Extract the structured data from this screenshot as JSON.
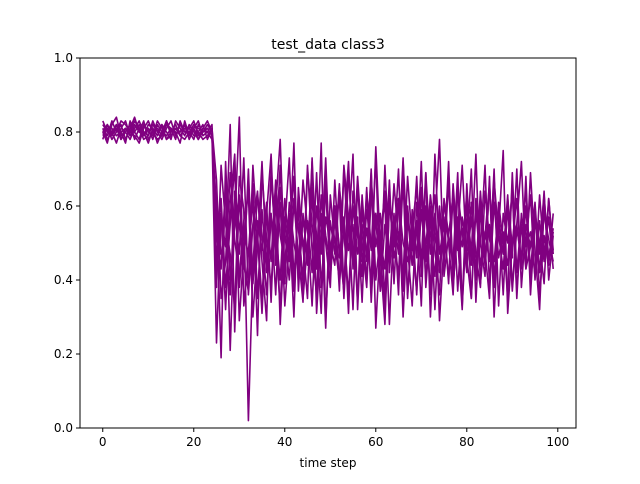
{
  "chart_data": {
    "type": "line",
    "title": "test_data class3",
    "xlabel": "time step",
    "ylabel": "",
    "xlim": [
      -5,
      104
    ],
    "ylim": [
      0.0,
      1.0
    ],
    "x_ticks": [
      0,
      20,
      40,
      60,
      80,
      100
    ],
    "x_tick_labels": [
      "0",
      "20",
      "40",
      "60",
      "80",
      "100"
    ],
    "y_ticks": [
      0.0,
      0.2,
      0.4,
      0.6,
      0.8,
      1.0
    ],
    "y_tick_labels": [
      "0.0",
      "0.2",
      "0.4",
      "0.6",
      "0.8",
      "1.0"
    ],
    "grid": false,
    "legend": "none",
    "line_color": "#800080",
    "x": [
      0,
      1,
      2,
      3,
      4,
      5,
      6,
      7,
      8,
      9,
      10,
      11,
      12,
      13,
      14,
      15,
      16,
      17,
      18,
      19,
      20,
      21,
      22,
      23,
      24,
      25,
      26,
      27,
      28,
      29,
      30,
      31,
      32,
      33,
      34,
      35,
      36,
      37,
      38,
      39,
      40,
      41,
      42,
      43,
      44,
      45,
      46,
      47,
      48,
      49,
      50,
      51,
      52,
      53,
      54,
      55,
      56,
      57,
      58,
      59,
      60,
      61,
      62,
      63,
      64,
      65,
      66,
      67,
      68,
      69,
      70,
      71,
      72,
      73,
      74,
      75,
      76,
      77,
      78,
      79,
      80,
      81,
      82,
      83,
      84,
      85,
      86,
      87,
      88,
      89,
      90,
      91,
      92,
      93,
      94,
      95,
      96,
      97,
      98,
      99
    ],
    "series": [
      {
        "values": [
          0.81,
          0.79,
          0.83,
          0.8,
          0.82,
          0.78,
          0.81,
          0.84,
          0.8,
          0.79,
          0.82,
          0.81,
          0.77,
          0.8,
          0.83,
          0.79,
          0.81,
          0.8,
          0.82,
          0.78,
          0.81,
          0.83,
          0.79,
          0.8,
          0.82,
          0.45,
          0.62,
          0.38,
          0.55,
          0.71,
          0.29,
          0.48,
          0.66,
          0.41,
          0.52,
          0.35,
          0.58,
          0.74,
          0.44,
          0.61,
          0.33,
          0.5,
          0.68,
          0.39,
          0.57,
          0.46,
          0.72,
          0.31,
          0.53,
          0.64,
          0.42,
          0.59,
          0.37,
          0.7,
          0.48,
          0.55,
          0.34,
          0.63,
          0.45,
          0.69,
          0.4,
          0.52,
          0.61,
          0.28,
          0.57,
          0.47,
          0.73,
          0.36,
          0.54,
          0.65,
          0.43,
          0.5,
          0.6,
          0.32,
          0.58,
          0.44,
          0.67,
          0.39,
          0.53,
          0.71,
          0.46,
          0.35,
          0.62,
          0.5,
          0.41,
          0.68,
          0.3,
          0.56,
          0.47,
          0.63,
          0.38,
          0.55,
          0.72,
          0.43,
          0.49,
          0.6,
          0.36,
          0.52,
          0.44,
          0.58
        ]
      },
      {
        "values": [
          0.78,
          0.82,
          0.8,
          0.77,
          0.81,
          0.83,
          0.79,
          0.8,
          0.78,
          0.82,
          0.8,
          0.79,
          0.83,
          0.81,
          0.78,
          0.8,
          0.82,
          0.79,
          0.81,
          0.8,
          0.78,
          0.82,
          0.8,
          0.81,
          0.79,
          0.23,
          0.57,
          0.49,
          0.82,
          0.26,
          0.63,
          0.44,
          0.37,
          0.71,
          0.52,
          0.31,
          0.58,
          0.45,
          0.67,
          0.28,
          0.54,
          0.73,
          0.4,
          0.6,
          0.35,
          0.5,
          0.62,
          0.43,
          0.77,
          0.29,
          0.56,
          0.47,
          0.66,
          0.38,
          0.53,
          0.74,
          0.32,
          0.59,
          0.46,
          0.7,
          0.27,
          0.51,
          0.64,
          0.42,
          0.58,
          0.36,
          0.72,
          0.49,
          0.33,
          0.61,
          0.45,
          0.69,
          0.3,
          0.55,
          0.78,
          0.41,
          0.52,
          0.63,
          0.37,
          0.57,
          0.48,
          0.7,
          0.34,
          0.59,
          0.44,
          0.66,
          0.39,
          0.53,
          0.75,
          0.31,
          0.5,
          0.62,
          0.43,
          0.68,
          0.36,
          0.56,
          0.47,
          0.64,
          0.4,
          0.52
        ]
      },
      {
        "values": [
          0.83,
          0.8,
          0.79,
          0.82,
          0.78,
          0.81,
          0.8,
          0.83,
          0.81,
          0.78,
          0.79,
          0.82,
          0.8,
          0.78,
          0.81,
          0.83,
          0.79,
          0.82,
          0.8,
          0.81,
          0.83,
          0.79,
          0.81,
          0.8,
          0.78,
          0.6,
          0.19,
          0.72,
          0.4,
          0.55,
          0.84,
          0.33,
          0.47,
          0.62,
          0.25,
          0.69,
          0.51,
          0.38,
          0.6,
          0.78,
          0.42,
          0.56,
          0.3,
          0.65,
          0.49,
          0.35,
          0.73,
          0.44,
          0.58,
          0.27,
          0.63,
          0.5,
          0.4,
          0.71,
          0.57,
          0.32,
          0.66,
          0.45,
          0.54,
          0.39,
          0.76,
          0.48,
          0.31,
          0.6,
          0.52,
          0.41,
          0.67,
          0.35,
          0.59,
          0.46,
          0.72,
          0.38,
          0.55,
          0.63,
          0.29,
          0.5,
          0.68,
          0.42,
          0.57,
          0.34,
          0.61,
          0.47,
          0.74,
          0.39,
          0.53,
          0.45,
          0.7,
          0.33,
          0.58,
          0.5,
          0.64,
          0.37,
          0.55,
          0.43,
          0.69,
          0.48,
          0.32,
          0.6,
          0.46,
          0.54
        ]
      },
      {
        "values": [
          0.8,
          0.77,
          0.82,
          0.84,
          0.79,
          0.8,
          0.78,
          0.81,
          0.83,
          0.8,
          0.77,
          0.81,
          0.79,
          0.82,
          0.8,
          0.78,
          0.83,
          0.81,
          0.79,
          0.82,
          0.8,
          0.78,
          0.81,
          0.83,
          0.8,
          0.52,
          0.43,
          0.66,
          0.21,
          0.58,
          0.47,
          0.73,
          0.36,
          0.55,
          0.64,
          0.45,
          0.29,
          0.7,
          0.53,
          0.4,
          0.62,
          0.48,
          0.77,
          0.37,
          0.58,
          0.44,
          0.65,
          0.52,
          0.31,
          0.69,
          0.46,
          0.6,
          0.39,
          0.54,
          0.72,
          0.43,
          0.57,
          0.34,
          0.64,
          0.49,
          0.58,
          0.37,
          0.71,
          0.45,
          0.53,
          0.62,
          0.3,
          0.56,
          0.48,
          0.68,
          0.41,
          0.6,
          0.36,
          0.74,
          0.47,
          0.55,
          0.4,
          0.63,
          0.51,
          0.32,
          0.66,
          0.44,
          0.58,
          0.49,
          0.71,
          0.38,
          0.61,
          0.46,
          0.53,
          0.35,
          0.69,
          0.42,
          0.57,
          0.5,
          0.63,
          0.4,
          0.56,
          0.45,
          0.62,
          0.48
        ]
      },
      {
        "values": [
          0.79,
          0.81,
          0.78,
          0.8,
          0.83,
          0.82,
          0.8,
          0.79,
          0.77,
          0.81,
          0.83,
          0.8,
          0.78,
          0.79,
          0.82,
          0.81,
          0.8,
          0.77,
          0.83,
          0.79,
          0.82,
          0.8,
          0.78,
          0.79,
          0.81,
          0.38,
          0.71,
          0.55,
          0.47,
          0.32,
          0.68,
          0.59,
          0.02,
          0.44,
          0.63,
          0.52,
          0.36,
          0.57,
          0.48,
          0.71,
          0.39,
          0.61,
          0.5,
          0.43,
          0.67,
          0.54,
          0.33,
          0.6,
          0.47,
          0.73,
          0.41,
          0.56,
          0.62,
          0.35,
          0.58,
          0.45,
          0.68,
          0.5,
          0.38,
          0.63,
          0.55,
          0.46,
          0.28,
          0.61,
          0.49,
          0.7,
          0.37,
          0.57,
          0.44,
          0.53,
          0.65,
          0.4,
          0.59,
          0.48,
          0.36,
          0.62,
          0.52,
          0.45,
          0.69,
          0.33,
          0.56,
          0.6,
          0.42,
          0.64,
          0.47,
          0.55,
          0.38,
          0.61,
          0.5,
          0.44,
          0.66,
          0.35,
          0.58,
          0.49,
          0.53,
          0.41,
          0.63,
          0.47,
          0.57,
          0.43
        ]
      },
      {
        "values": [
          0.82,
          0.8,
          0.81,
          0.79,
          0.8,
          0.77,
          0.83,
          0.8,
          0.82,
          0.79,
          0.81,
          0.78,
          0.82,
          0.8,
          0.79,
          0.81,
          0.78,
          0.83,
          0.8,
          0.81,
          0.79,
          0.8,
          0.82,
          0.78,
          0.81,
          0.67,
          0.35,
          0.45,
          0.69,
          0.51,
          0.41,
          0.56,
          0.63,
          0.3,
          0.49,
          0.72,
          0.44,
          0.58,
          0.36,
          0.65,
          0.53,
          0.4,
          0.61,
          0.47,
          0.34,
          0.7,
          0.55,
          0.43,
          0.62,
          0.5,
          0.38,
          0.67,
          0.46,
          0.57,
          0.31,
          0.64,
          0.52,
          0.41,
          0.59,
          0.48,
          0.73,
          0.37,
          0.55,
          0.45,
          0.66,
          0.51,
          0.39,
          0.6,
          0.44,
          0.56,
          0.33,
          0.69,
          0.47,
          0.58,
          0.42,
          0.61,
          0.5,
          0.36,
          0.64,
          0.53,
          0.44,
          0.57,
          0.4,
          0.62,
          0.48,
          0.35,
          0.67,
          0.52,
          0.43,
          0.59,
          0.46,
          0.7,
          0.38,
          0.55,
          0.49,
          0.61,
          0.42,
          0.58,
          0.51,
          0.45
        ]
      },
      {
        "values": [
          0.81,
          0.78,
          0.8,
          0.82,
          0.8,
          0.81,
          0.79,
          0.82,
          0.8,
          0.83,
          0.78,
          0.8,
          0.81,
          0.79,
          0.83,
          0.8,
          0.81,
          0.79,
          0.78,
          0.8,
          0.82,
          0.81,
          0.8,
          0.82,
          0.8,
          0.44,
          0.58,
          0.32,
          0.61,
          0.74,
          0.38,
          0.53,
          0.47,
          0.66,
          0.35,
          0.59,
          0.42,
          0.68,
          0.5,
          0.33,
          0.57,
          0.45,
          0.62,
          0.54,
          0.4,
          0.71,
          0.48,
          0.36,
          0.63,
          0.52,
          0.44,
          0.6,
          0.49,
          0.37,
          0.7,
          0.46,
          0.55,
          0.41,
          0.65,
          0.34,
          0.58,
          0.51,
          0.43,
          0.67,
          0.39,
          0.62,
          0.5,
          0.45,
          0.57,
          0.36,
          0.64,
          0.48,
          0.53,
          0.41,
          0.6,
          0.46,
          0.72,
          0.38,
          0.55,
          0.49,
          0.63,
          0.35,
          0.59,
          0.44,
          0.52,
          0.66,
          0.4,
          0.57,
          0.47,
          0.61,
          0.37,
          0.54,
          0.46,
          0.65,
          0.42,
          0.58,
          0.5,
          0.39,
          0.62,
          0.47
        ]
      },
      {
        "values": [
          0.8,
          0.82,
          0.79,
          0.81,
          0.78,
          0.8,
          0.82,
          0.78,
          0.81,
          0.8,
          0.79,
          0.83,
          0.8,
          0.82,
          0.78,
          0.79,
          0.81,
          0.8,
          0.82,
          0.79,
          0.81,
          0.78,
          0.8,
          0.81,
          0.79,
          0.59,
          0.47,
          0.51,
          0.36,
          0.64,
          0.55,
          0.43,
          0.7,
          0.39,
          0.56,
          0.48,
          0.61,
          0.34,
          0.66,
          0.52,
          0.45,
          0.58,
          0.37,
          0.63,
          0.49,
          0.56,
          0.42,
          0.69,
          0.38,
          0.57,
          0.5,
          0.44,
          0.65,
          0.53,
          0.36,
          0.6,
          0.47,
          0.55,
          0.4,
          0.67,
          0.49,
          0.58,
          0.35,
          0.62,
          0.46,
          0.53,
          0.41,
          0.68,
          0.5,
          0.37,
          0.59,
          0.45,
          0.63,
          0.52,
          0.43,
          0.57,
          0.39,
          0.66,
          0.48,
          0.54,
          0.42,
          0.61,
          0.47,
          0.38,
          0.64,
          0.51,
          0.45,
          0.59,
          0.36,
          0.62,
          0.49,
          0.55,
          0.44,
          0.6,
          0.4,
          0.57,
          0.48,
          0.63,
          0.45,
          0.53
        ]
      }
    ]
  }
}
